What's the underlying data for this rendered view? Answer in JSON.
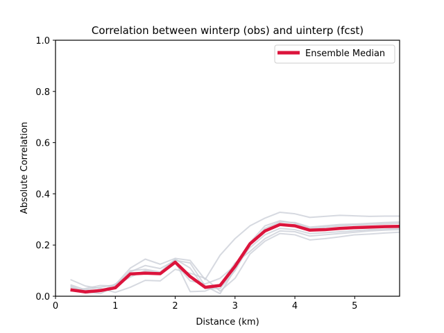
{
  "chart_data": {
    "type": "line",
    "title": "Correlation between winterp (obs) and uinterp (fcst)",
    "xlabel": "Distance (km)",
    "ylabel": "Absolute Correlation",
    "xlim": [
      0,
      5.75
    ],
    "ylim": [
      0,
      1.0
    ],
    "xticks": [
      0,
      1,
      2,
      3,
      4,
      5
    ],
    "xtick_labels": [
      "0",
      "1",
      "2",
      "3",
      "4",
      "5"
    ],
    "yticks": [
      0.0,
      0.2,
      0.4,
      0.6,
      0.8,
      1.0
    ],
    "ytick_labels": [
      "0.0",
      "0.2",
      "0.4",
      "0.6",
      "0.8",
      "1.0"
    ],
    "grid": false,
    "legend": {
      "position": "top-right",
      "entries": [
        "Ensemble Median"
      ]
    },
    "x": [
      0.25,
      0.5,
      0.75,
      1.0,
      1.25,
      1.5,
      1.75,
      2.0,
      2.25,
      2.5,
      2.75,
      3.0,
      3.25,
      3.5,
      3.75,
      4.0,
      4.25,
      4.5,
      4.75,
      5.0,
      5.25,
      5.5,
      5.75
    ],
    "median": {
      "name": "Ensemble Median",
      "color": "#dc143c",
      "values": [
        0.025,
        0.017,
        0.022,
        0.033,
        0.087,
        0.09,
        0.088,
        0.133,
        0.077,
        0.035,
        0.042,
        0.117,
        0.205,
        0.255,
        0.28,
        0.275,
        0.258,
        0.26,
        0.265,
        0.268,
        0.27,
        0.272,
        0.273
      ]
    },
    "members": {
      "color": "#c8ccd6",
      "series": [
        {
          "values": [
            0.065,
            0.04,
            0.03,
            0.015,
            0.035,
            0.062,
            0.06,
            0.105,
            0.09,
            0.07,
            0.02,
            0.07,
            0.165,
            0.215,
            0.245,
            0.24,
            0.22,
            0.225,
            0.232,
            0.24,
            0.243,
            0.247,
            0.25
          ]
        },
        {
          "values": [
            0.045,
            0.025,
            0.035,
            0.045,
            0.11,
            0.145,
            0.125,
            0.148,
            0.14,
            0.065,
            0.16,
            0.225,
            0.275,
            0.305,
            0.328,
            0.322,
            0.308,
            0.312,
            0.316,
            0.314,
            0.312,
            0.313,
            0.313
          ]
        },
        {
          "values": [
            0.02,
            0.03,
            0.042,
            0.04,
            0.075,
            0.1,
            0.09,
            0.138,
            0.018,
            0.02,
            0.045,
            0.13,
            0.175,
            0.225,
            0.255,
            0.252,
            0.235,
            0.24,
            0.245,
            0.25,
            0.255,
            0.258,
            0.26
          ]
        },
        {
          "values": [
            0.035,
            0.02,
            0.025,
            0.03,
            0.095,
            0.12,
            0.108,
            0.14,
            0.13,
            0.04,
            0.01,
            0.105,
            0.21,
            0.275,
            0.295,
            0.285,
            0.265,
            0.27,
            0.275,
            0.278,
            0.28,
            0.283,
            0.285
          ]
        },
        {
          "values": [
            0.03,
            0.012,
            0.018,
            0.048,
            0.085,
            0.095,
            0.085,
            0.128,
            0.06,
            0.048,
            0.07,
            0.12,
            0.19,
            0.24,
            0.265,
            0.26,
            0.245,
            0.248,
            0.252,
            0.256,
            0.26,
            0.262,
            0.265
          ]
        },
        {
          "values": [
            0.04,
            0.018,
            0.01,
            0.04,
            0.1,
            0.105,
            0.095,
            0.145,
            0.11,
            0.03,
            0.03,
            0.1,
            0.2,
            0.265,
            0.29,
            0.288,
            0.27,
            0.275,
            0.28,
            0.282,
            0.285,
            0.288,
            0.29
          ]
        }
      ]
    }
  }
}
